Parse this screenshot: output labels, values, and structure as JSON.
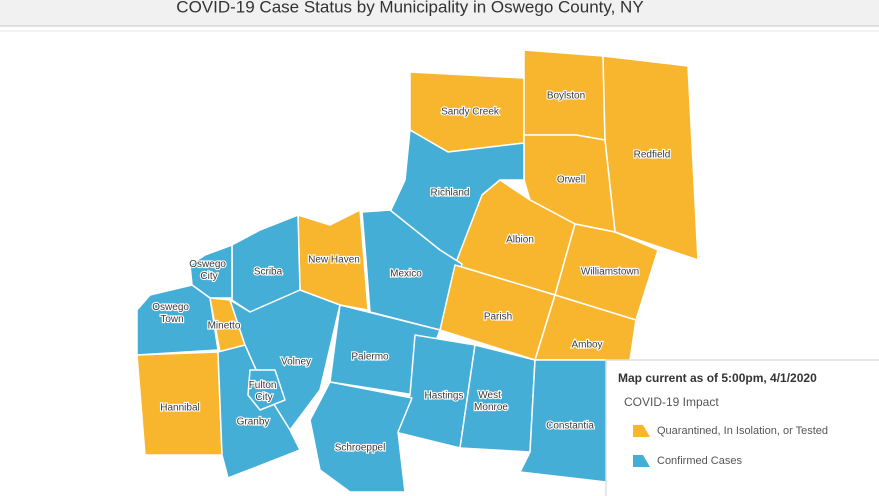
{
  "header": {
    "title": "COVID-19 Case Status by Municipality in Oswego County, NY"
  },
  "map": {
    "municipalities": [
      {
        "name": "Sandy Creek",
        "color": "#F8B62F"
      },
      {
        "name": "Boylston",
        "color": "#F8B62F"
      },
      {
        "name": "Redfield",
        "color": "#F8B62F"
      },
      {
        "name": "Orwell",
        "color": "#F8B62F"
      },
      {
        "name": "Richland",
        "color": "#44AED6"
      },
      {
        "name": "Albion",
        "color": "#F8B62F"
      },
      {
        "name": "Williamstown",
        "color": "#F8B62F"
      },
      {
        "name": "Mexico",
        "color": "#44AED6"
      },
      {
        "name": "New Haven",
        "color": "#F8B62F"
      },
      {
        "name": "Scriba",
        "color": "#44AED6"
      },
      {
        "name": "Oswego City",
        "color": "#44AED6"
      },
      {
        "name": "Oswego Town",
        "color": "#44AED6"
      },
      {
        "name": "Minetto",
        "color": "#F8B62F"
      },
      {
        "name": "Parish",
        "color": "#F8B62F"
      },
      {
        "name": "Amboy",
        "color": "#F8B62F"
      },
      {
        "name": "Volney",
        "color": "#44AED6"
      },
      {
        "name": "Palermo",
        "color": "#44AED6"
      },
      {
        "name": "Hannibal",
        "color": "#F8B62F"
      },
      {
        "name": "Granby",
        "color": "#44AED6"
      },
      {
        "name": "Fulton City",
        "color": "#44AED6"
      },
      {
        "name": "Hastings",
        "color": "#44AED6"
      },
      {
        "name": "West Monroe",
        "color": "#44AED6"
      },
      {
        "name": "Constantia",
        "color": "#44AED6"
      },
      {
        "name": "Schroeppel",
        "color": "#44AED6"
      }
    ]
  },
  "legend": {
    "date": "Map current as of 5:00pm, 4/1/2020",
    "title": "COVID-19 Impact",
    "items": [
      {
        "label": "Quarantined, In Isolation, or Tested",
        "color": "#F8B62F"
      },
      {
        "label": "Confirmed Cases",
        "color": "#44AED6"
      }
    ]
  }
}
